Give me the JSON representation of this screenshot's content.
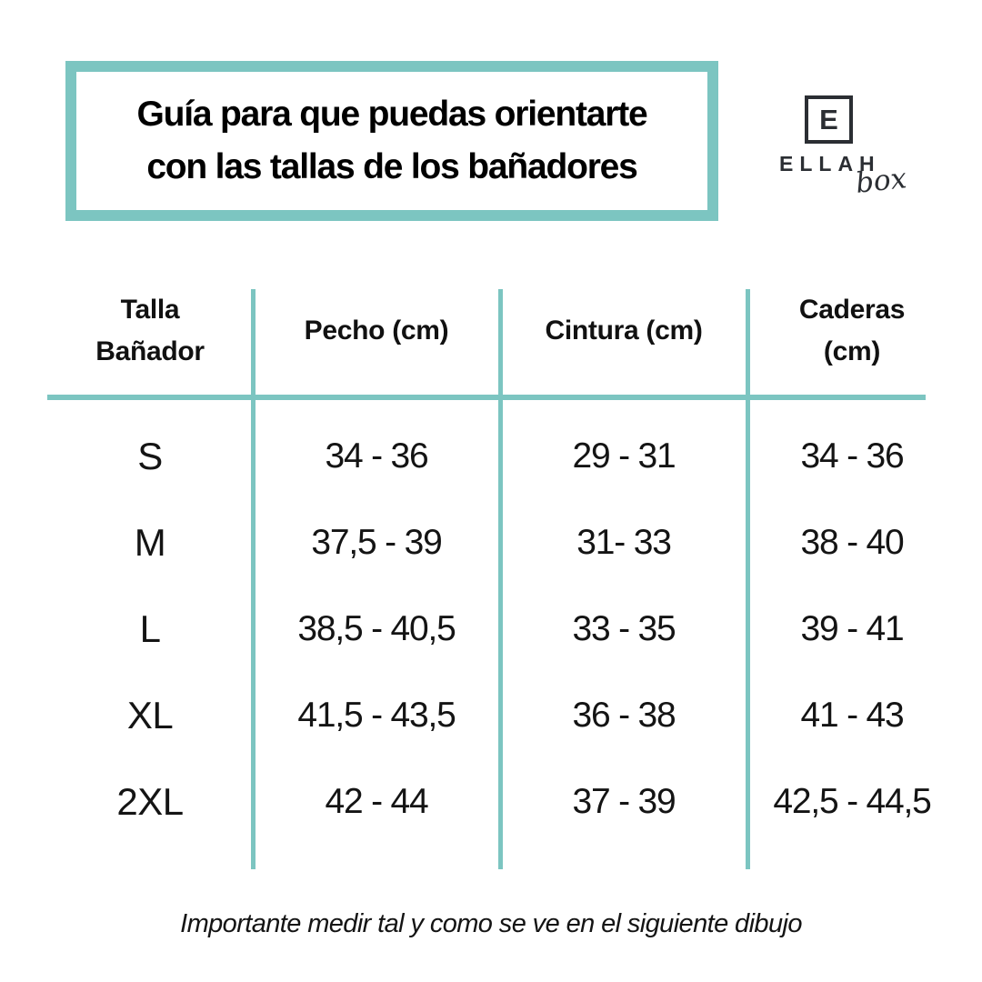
{
  "page": {
    "background": "#ffffff",
    "accent_color": "#7cc5c1",
    "text_color": "#141414",
    "logo_color": "#2b2e33"
  },
  "header": {
    "title_line1": "Guía para que puedas orientarte",
    "title_line2": "con las tallas de los bañadores"
  },
  "logo": {
    "monogram": "E",
    "brand": "ELLAH",
    "tagline": "box"
  },
  "table": {
    "headers": [
      {
        "lines": [
          "Talla",
          "Bañador"
        ]
      },
      {
        "lines": [
          "Pecho (cm)"
        ]
      },
      {
        "lines": [
          "Cintura (cm)"
        ]
      },
      {
        "lines": [
          "Caderas",
          "(cm)"
        ]
      }
    ],
    "rows": [
      {
        "size": "S",
        "pecho": "34 - 36",
        "cintura": "29 - 31",
        "caderas": "34 - 36"
      },
      {
        "size": "M",
        "pecho": "37,5 - 39",
        "cintura": "31- 33",
        "caderas": "38 - 40"
      },
      {
        "size": "L",
        "pecho": "38,5 - 40,5",
        "cintura": "33 - 35",
        "caderas": "39 - 41"
      },
      {
        "size": "XL",
        "pecho": "41,5 - 43,5",
        "cintura": "36 - 38",
        "caderas": "41 - 43"
      },
      {
        "size": "2XL",
        "pecho": "42 - 44",
        "cintura": "37 - 39",
        "caderas": "42,5 - 44,5"
      }
    ]
  },
  "footer": {
    "note": "Importante medir tal y como se ve en el siguiente dibujo"
  }
}
